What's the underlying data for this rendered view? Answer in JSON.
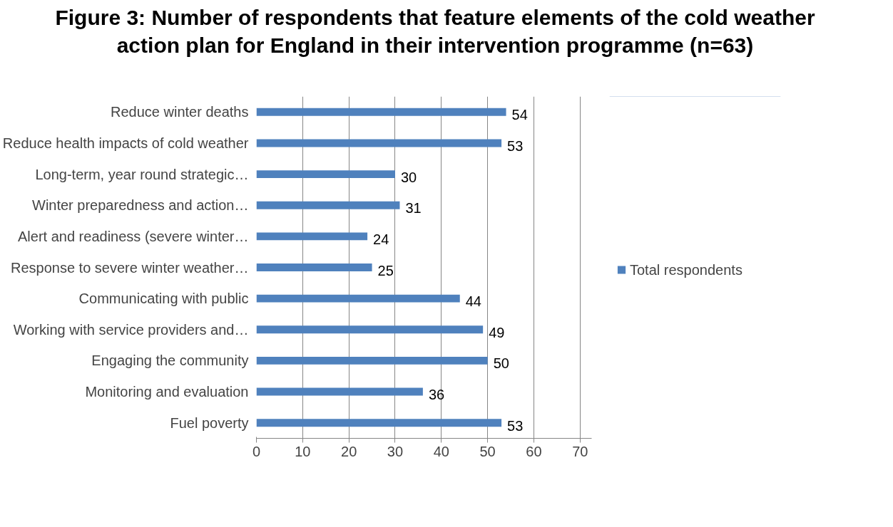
{
  "chart_data": {
    "type": "bar",
    "orientation": "horizontal",
    "title": "Figure 3: Number of respondents that feature elements of the cold weather action plan for England in their intervention programme (n=63)",
    "categories": [
      "Reduce winter deaths",
      "Reduce health impacts of cold weather",
      "Long-term, year round strategic…",
      "Winter preparedness and action…",
      "Alert and readiness (severe winter…",
      "Response to severe winter weather…",
      "Communicating with public",
      "Working with service providers and…",
      "Engaging the community",
      "Monitoring and evaluation",
      "Fuel poverty"
    ],
    "series": [
      {
        "name": "Total respondents",
        "color": "#4f81bd",
        "values": [
          54,
          53,
          30,
          31,
          24,
          25,
          44,
          49,
          50,
          36,
          53
        ]
      }
    ],
    "xlim": [
      0,
      72.5
    ],
    "xticks": [
      0,
      10,
      20,
      30,
      40,
      50,
      60,
      70
    ],
    "grid": "x",
    "legend": "right",
    "data_labels": true
  }
}
